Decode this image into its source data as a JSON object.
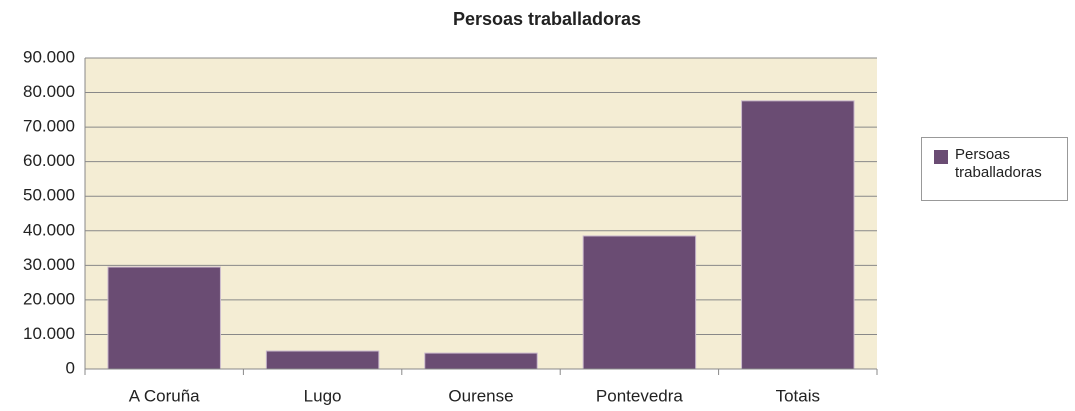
{
  "chart_data": {
    "type": "bar",
    "title": "Persoas traballadoras",
    "categories": [
      "A Coruña",
      "Lugo",
      "Ourense",
      "Pontevedra",
      "Totais"
    ],
    "series": [
      {
        "name": "Persoas traballadoras",
        "color": "#6a4c73",
        "values": [
          29500,
          5200,
          4600,
          38500,
          77600
        ]
      }
    ],
    "ylim": [
      0,
      90000
    ],
    "yticks": [
      0,
      {
        "value": 10000,
        "label": "10.000"
      },
      {
        "value": 20000,
        "label": "20.000"
      },
      {
        "value": 30000,
        "label": "30.000"
      },
      {
        "value": 40000,
        "label": "40.000"
      },
      {
        "value": 50000,
        "label": "50.000"
      },
      {
        "value": 60000,
        "label": "60.000"
      },
      {
        "value": 70000,
        "label": "70.000"
      },
      {
        "value": 80000,
        "label": "80.000"
      },
      {
        "value": 90000,
        "label": "90.000"
      }
    ],
    "grid": true,
    "legend": "right"
  }
}
